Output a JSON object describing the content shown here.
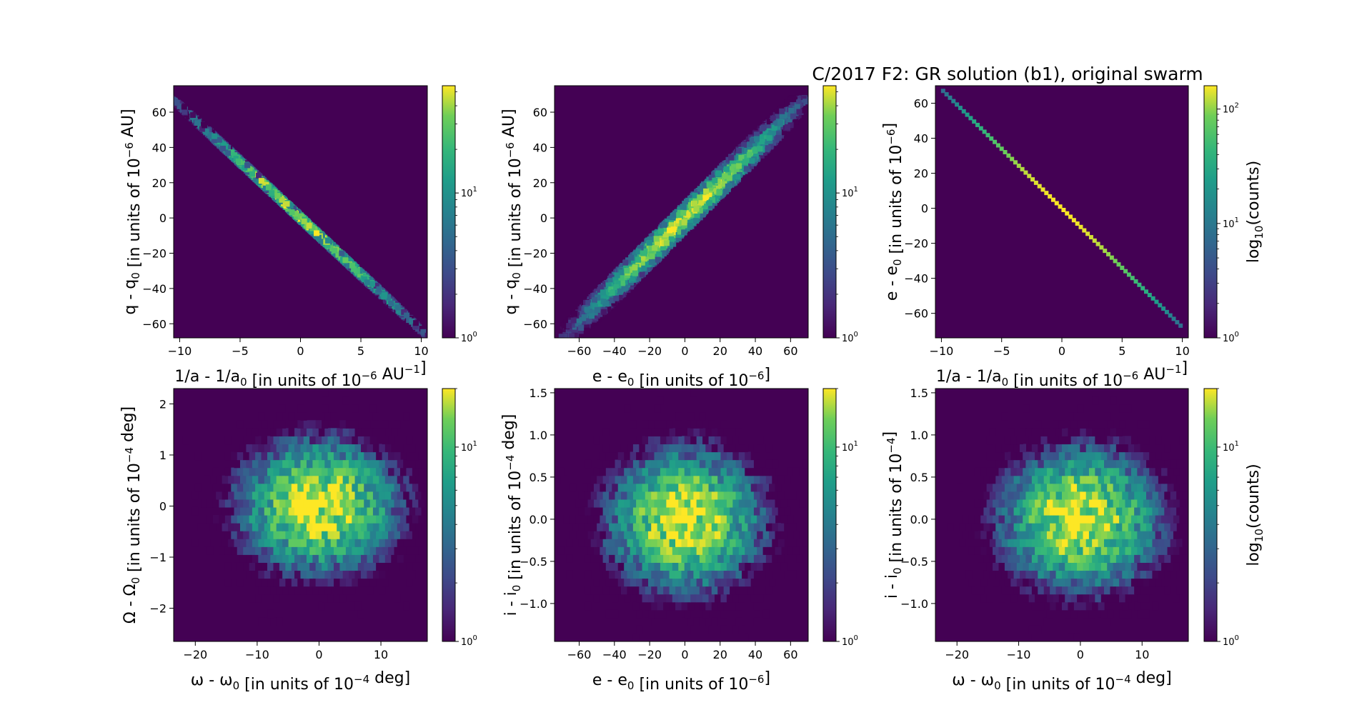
{
  "figure_title": "C/2017 F2: GR solution (b1), original swarm",
  "colors": {
    "background": "#440154",
    "low": "#440154",
    "high": "#fde725"
  },
  "chart_data": [
    {
      "type": "heatmap",
      "panel": "1",
      "shape": "line",
      "slope": -6.4,
      "spread": 1.3,
      "peak": 55,
      "n": 260,
      "xlim": [
        -10.5,
        10.5
      ],
      "ylim": [
        -68,
        75
      ],
      "xticks": [
        -10,
        -5,
        0,
        5,
        10
      ],
      "yticks": [
        -60,
        -40,
        -20,
        0,
        20,
        40,
        60
      ],
      "xlabel": "1/a - 1/a",
      "xlabel_sub": "0",
      "xlabel_tail": " [in units of 10",
      "xlabel_sup": "−6",
      "xlabel_end": " AU",
      "xlabel_end_sup": "−1",
      "xlabel_close": "]",
      "ylabel": "q - q",
      "ylabel_sub": "0",
      "ylabel_tail": " [in units of 10",
      "ylabel_sup": "−6",
      "ylabel_end": " AU]",
      "colorbar": {
        "scale": "log",
        "max": 55,
        "ticks": [
          {
            "base": "10",
            "exp": "0",
            "value": 1
          },
          {
            "base": "10",
            "exp": "1",
            "value": 10
          }
        ],
        "label": ""
      }
    },
    {
      "type": "heatmap",
      "panel": "2",
      "shape": "line",
      "slope": 1.0,
      "spread": 8.5,
      "peak": 55,
      "n": 260,
      "xlim": [
        -74,
        70
      ],
      "ylim": [
        -68,
        75
      ],
      "xticks": [
        -60,
        -40,
        -20,
        0,
        20,
        40,
        60
      ],
      "yticks": [
        -60,
        -40,
        -20,
        0,
        20,
        40,
        60
      ],
      "xlabel": "e - e",
      "xlabel_sub": "0",
      "xlabel_tail": " [in units of 10",
      "xlabel_sup": "−6",
      "xlabel_end": "]",
      "xlabel_end_sup": "",
      "xlabel_close": "",
      "ylabel": "q - q",
      "ylabel_sub": "0",
      "ylabel_tail": " [in units of 10",
      "ylabel_sup": "−6",
      "ylabel_end": " AU]",
      "colorbar": {
        "scale": "log",
        "max": 55,
        "ticks": [
          {
            "base": "10",
            "exp": "0",
            "value": 1
          },
          {
            "base": "10",
            "exp": "1",
            "value": 10
          }
        ],
        "label": ""
      }
    },
    {
      "type": "heatmap",
      "panel": "3",
      "shape": "thin-line",
      "slope": -6.8,
      "spread": 0.0,
      "peak": 160,
      "n": 70,
      "xlim": [
        -10.5,
        10.5
      ],
      "ylim": [
        -74,
        70
      ],
      "xticks": [
        -10,
        -5,
        0,
        5,
        10
      ],
      "yticks": [
        -60,
        -40,
        -20,
        0,
        20,
        40,
        60
      ],
      "xlabel": "1/a - 1/a",
      "xlabel_sub": "0",
      "xlabel_tail": " [in units of 10",
      "xlabel_sup": "−6",
      "xlabel_end": " AU",
      "xlabel_end_sup": "−1",
      "xlabel_close": "]",
      "ylabel": "e - e",
      "ylabel_sub": "0",
      "ylabel_tail": " [in units of 10",
      "ylabel_sup": "−6",
      "ylabel_end": "]",
      "colorbar": {
        "scale": "log",
        "max": 160,
        "ticks": [
          {
            "base": "10",
            "exp": "0",
            "value": 1
          },
          {
            "base": "10",
            "exp": "1",
            "value": 10
          },
          {
            "base": "10",
            "exp": "2",
            "value": 100
          }
        ],
        "label": "log",
        "label_sub": "10",
        "label_tail": "(counts)"
      }
    },
    {
      "type": "heatmap",
      "panel": "4",
      "shape": "blob",
      "sx": 6.5,
      "sy": 0.65,
      "peak": 20,
      "n": 42,
      "xlim": [
        -23.5,
        17.5
      ],
      "ylim": [
        -2.65,
        2.3
      ],
      "xticks": [
        -20,
        -10,
        0,
        10
      ],
      "yticks": [
        -2,
        -1,
        0,
        1,
        2
      ],
      "xlabel": "ω - ω",
      "xlabel_sub": "0",
      "xlabel_tail": " [in units of 10",
      "xlabel_sup": "−4",
      "xlabel_end": " deg]",
      "xlabel_end_sup": "",
      "xlabel_close": "",
      "ylabel": "Ω - Ω",
      "ylabel_sub": "0",
      "ylabel_tail": " [in units of 10",
      "ylabel_sup": "−4",
      "ylabel_end": " deg]",
      "colorbar": {
        "scale": "log",
        "max": 20,
        "ticks": [
          {
            "base": "10",
            "exp": "0",
            "value": 1
          },
          {
            "base": "10",
            "exp": "1",
            "value": 10
          }
        ],
        "label": ""
      }
    },
    {
      "type": "heatmap",
      "panel": "5",
      "shape": "blob",
      "sx": 22,
      "sy": 0.42,
      "peak": 20,
      "n": 42,
      "xlim": [
        -74,
        70
      ],
      "ylim": [
        -1.45,
        1.55
      ],
      "xticks": [
        -60,
        -40,
        -20,
        0,
        20,
        40,
        60
      ],
      "yticks": [
        -1.0,
        -0.5,
        0.0,
        0.5,
        1.0,
        1.5
      ],
      "xlabel": "e - e",
      "xlabel_sub": "0",
      "xlabel_tail": " [in units of 10",
      "xlabel_sup": "−6",
      "xlabel_end": "]",
      "xlabel_end_sup": "",
      "xlabel_close": "",
      "ylabel": "i - i",
      "ylabel_sub": "0",
      "ylabel_tail": " [in units of 10",
      "ylabel_sup": "−4",
      "ylabel_end": " deg]",
      "colorbar": {
        "scale": "log",
        "max": 20,
        "ticks": [
          {
            "base": "10",
            "exp": "0",
            "value": 1
          },
          {
            "base": "10",
            "exp": "1",
            "value": 10
          }
        ],
        "label": ""
      }
    },
    {
      "type": "heatmap",
      "panel": "6",
      "shape": "blob",
      "sx": 6.5,
      "sy": 0.42,
      "peak": 20,
      "n": 42,
      "xlim": [
        -23.5,
        17.5
      ],
      "ylim": [
        -1.45,
        1.55
      ],
      "xticks": [
        -20,
        -10,
        0,
        10
      ],
      "yticks": [
        -1.0,
        -0.5,
        0.0,
        0.5,
        1.0,
        1.5
      ],
      "xlabel": "ω - ω",
      "xlabel_sub": "0",
      "xlabel_tail": " [in units of 10",
      "xlabel_sup": "−4",
      "xlabel_end": " deg]",
      "xlabel_end_sup": "",
      "xlabel_close": "",
      "ylabel": "i - i",
      "ylabel_sub": "0",
      "ylabel_tail": " [in units of 10",
      "ylabel_sup": "−4",
      "ylabel_end": "]",
      "colorbar": {
        "scale": "log",
        "max": 20,
        "ticks": [
          {
            "base": "10",
            "exp": "0",
            "value": 1
          },
          {
            "base": "10",
            "exp": "1",
            "value": 10
          }
        ],
        "label": "log",
        "label_sub": "10",
        "label_tail": "(counts)"
      }
    }
  ]
}
